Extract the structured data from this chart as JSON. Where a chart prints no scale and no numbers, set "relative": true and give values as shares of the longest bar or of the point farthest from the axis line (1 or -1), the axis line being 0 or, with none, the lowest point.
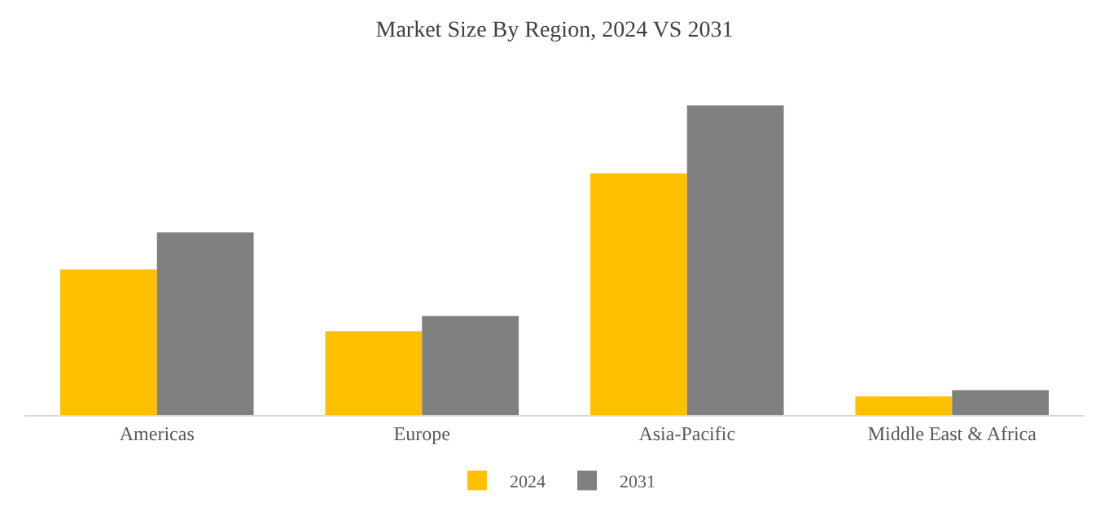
{
  "chart_data": {
    "type": "bar",
    "title": "Market Size By Region, 2024 VS 2031",
    "relative": true,
    "categories": [
      "Americas",
      "Europe",
      "Asia-Pacific",
      "Middle East & Africa"
    ],
    "series": [
      {
        "name": "2024",
        "color": "#ffc000",
        "values": [
          0.47,
          0.27,
          0.78,
          0.06
        ]
      },
      {
        "name": "2031",
        "color": "#808080",
        "values": [
          0.59,
          0.32,
          1,
          0.08
        ]
      }
    ],
    "legend": "bottom"
  }
}
